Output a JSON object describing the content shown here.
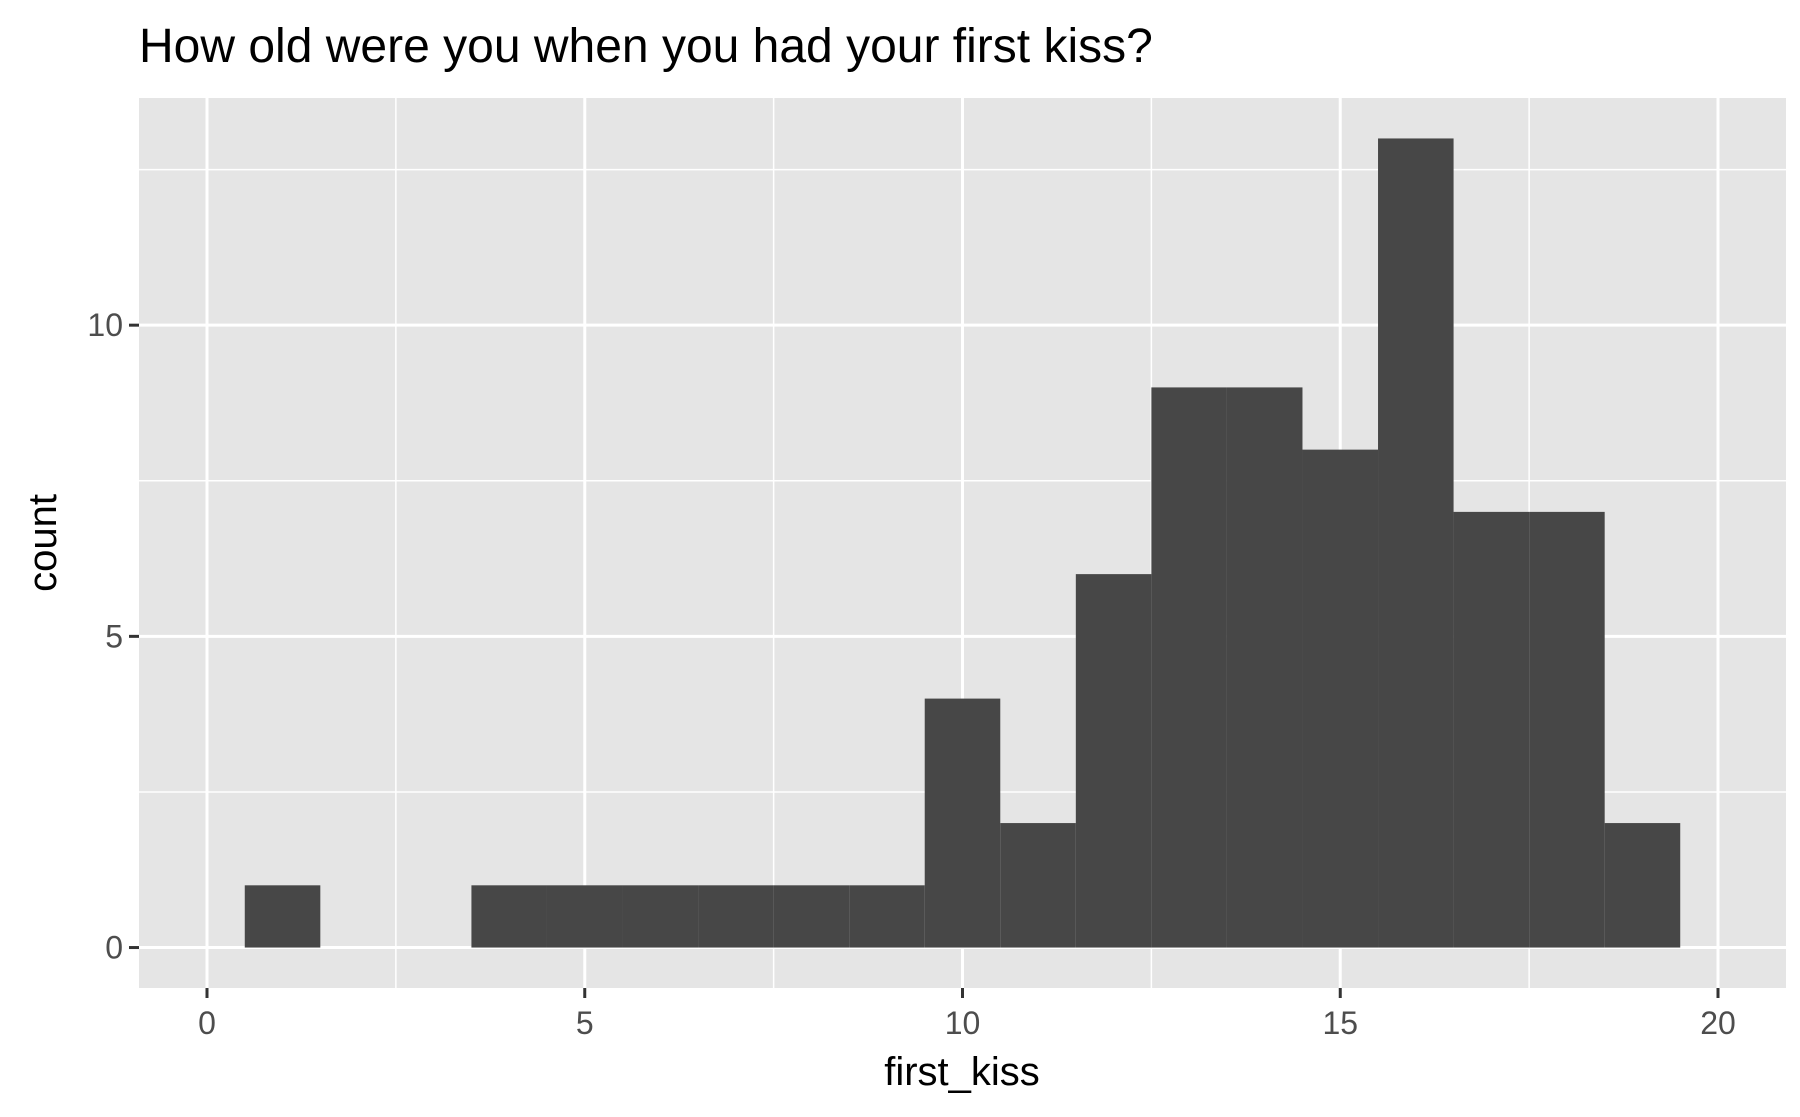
{
  "chart_data": {
    "type": "bar",
    "title": "How old were you when you had your first kiss?",
    "xlabel": "first_kiss",
    "ylabel": "count",
    "xlim": [
      -0.9,
      20.9
    ],
    "ylim": [
      -0.65,
      13.65
    ],
    "x_ticks": [
      0,
      5,
      10,
      15,
      20
    ],
    "x_tick_labels": [
      "0",
      "5",
      "10",
      "15",
      "20"
    ],
    "x_minor_ticks": [
      2.5,
      7.5,
      12.5,
      17.5
    ],
    "y_ticks": [
      0,
      5,
      10
    ],
    "y_tick_labels": [
      "0",
      "5",
      "10"
    ],
    "y_minor_ticks": [
      2.5,
      7.5,
      12.5
    ],
    "grid": true,
    "bin_width": 1,
    "bins": [
      {
        "x": 1,
        "count": 1
      },
      {
        "x": 4,
        "count": 1
      },
      {
        "x": 5,
        "count": 1
      },
      {
        "x": 6,
        "count": 1
      },
      {
        "x": 7,
        "count": 1
      },
      {
        "x": 8,
        "count": 1
      },
      {
        "x": 9,
        "count": 1
      },
      {
        "x": 10,
        "count": 4
      },
      {
        "x": 11,
        "count": 2
      },
      {
        "x": 12,
        "count": 6
      },
      {
        "x": 13,
        "count": 9
      },
      {
        "x": 14,
        "count": 9
      },
      {
        "x": 15,
        "count": 8
      },
      {
        "x": 16,
        "count": 13
      },
      {
        "x": 17,
        "count": 7
      },
      {
        "x": 18,
        "count": 7
      },
      {
        "x": 19,
        "count": 2
      }
    ],
    "colors": {
      "panel_background": "#e5e5e5",
      "grid": "#ffffff",
      "bar_fill": "#474747",
      "tick_label": "#4d4d4d",
      "tick_mark": "#333333"
    }
  }
}
